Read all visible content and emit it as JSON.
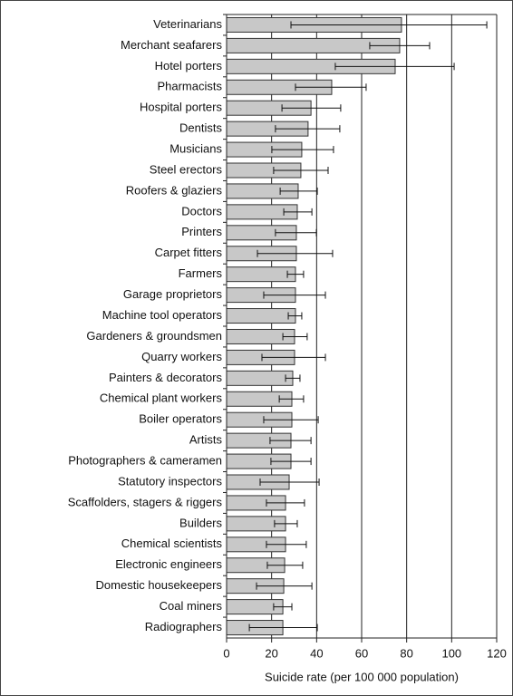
{
  "chart_data": {
    "type": "bar",
    "orientation": "horizontal",
    "xlabel": "Suicide rate (per 100 000 population)",
    "categories": [
      "Veterinarians",
      "Merchant seafarers",
      "Hotel porters",
      "Pharmacists",
      "Hospital porters",
      "Dentists",
      "Musicians",
      "Steel erectors",
      "Roofers & glaziers",
      "Doctors",
      "Printers",
      "Carpet fitters",
      "Farmers",
      "Garage proprietors",
      "Machine tool operators",
      "Gardeners & groundsmen",
      "Quarry workers",
      "Painters & decorators",
      "Chemical plant workers",
      "Boiler operators",
      "Artists",
      "Photographers & cameramen",
      "Statutory inspectors",
      "Scaffolders, stagers & riggers",
      "Builders",
      "Chemical scientists",
      "Electronic engineers",
      "Domestic housekeepers",
      "Coal miners",
      "Radiographers"
    ],
    "values": [
      77.7,
      76.9,
      74.9,
      46.7,
      37.5,
      36.2,
      33.4,
      33,
      31.8,
      31.4,
      31,
      31,
      30.6,
      30.6,
      30.6,
      30.2,
      30.2,
      29.4,
      29,
      29,
      28.6,
      28.6,
      27.8,
      26.2,
      26.2,
      26.2,
      25.8,
      25.4,
      25,
      25
    ],
    "ci_low": [
      28.6,
      63.6,
      48.3,
      30.6,
      24.6,
      21.7,
      20.1,
      20.9,
      23.8,
      25.4,
      21.7,
      13.7,
      27,
      16.5,
      27.4,
      25,
      15.7,
      26.2,
      23.4,
      16.5,
      19.3,
      19.7,
      14.9,
      17.7,
      21.3,
      17.7,
      18.1,
      13.3,
      20.9,
      10.1
    ],
    "ci_high": [
      115.6,
      90.2,
      101.1,
      62,
      50.7,
      50.3,
      47.5,
      45.1,
      40.3,
      37.9,
      39.9,
      47.1,
      34.2,
      43.9,
      33.4,
      35.8,
      43.9,
      32.6,
      34.2,
      40.7,
      37.5,
      37.5,
      41.1,
      34.6,
      31.4,
      35.4,
      33.8,
      37.9,
      29,
      40.3
    ],
    "color": "#c8c8c8",
    "xlim": [
      0,
      120
    ],
    "xticks": [
      0,
      20,
      40,
      60,
      80,
      100,
      120
    ],
    "grid": true
  }
}
